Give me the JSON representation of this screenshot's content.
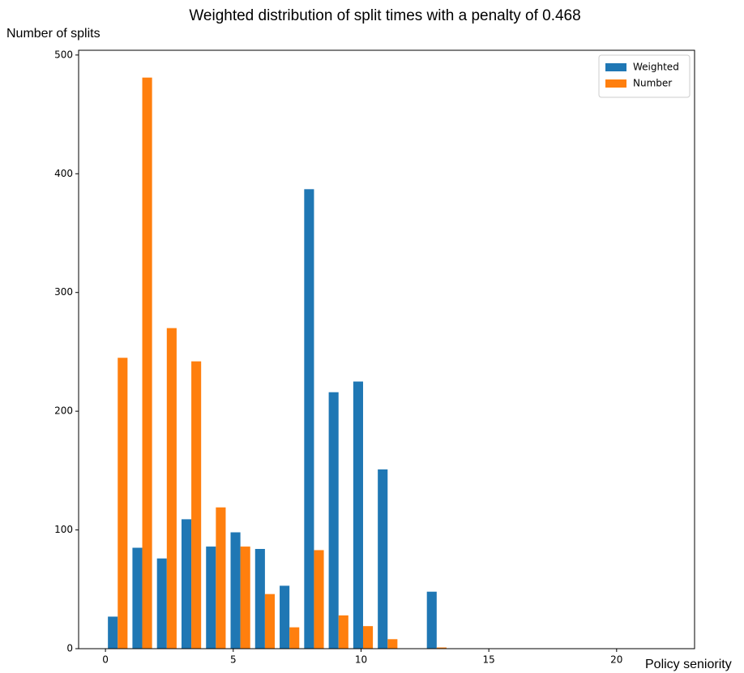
{
  "chart_data": {
    "type": "histogram",
    "title": "Weighted distribution of split times with a penalty of 0.468",
    "x_label": "Policy seniority",
    "y_label": "Number of splits",
    "bins": [
      0,
      0.96,
      1.92,
      2.88,
      3.84,
      4.8,
      5.76,
      6.72,
      7.68,
      8.64,
      9.6,
      10.56,
      11.52,
      12.48,
      13.44
    ],
    "series": [
      {
        "name": "Weighted",
        "color": "#1f77b4",
        "values": [
          27,
          85,
          76,
          109,
          86,
          98,
          84,
          53,
          387,
          216,
          225,
          151,
          0,
          48
        ]
      },
      {
        "name": "Number",
        "color": "#ff7f0e",
        "values": [
          245,
          481,
          270,
          242,
          119,
          86,
          46,
          18,
          83,
          28,
          19,
          8,
          0,
          1
        ]
      }
    ],
    "xlim": [
      -1.05,
      23.05
    ],
    "xticks": [
      0,
      5,
      10,
      15,
      20
    ],
    "ylim": [
      0,
      504
    ],
    "yticks": [
      0,
      100,
      200,
      300,
      400,
      500
    ],
    "legend": "upper right"
  }
}
